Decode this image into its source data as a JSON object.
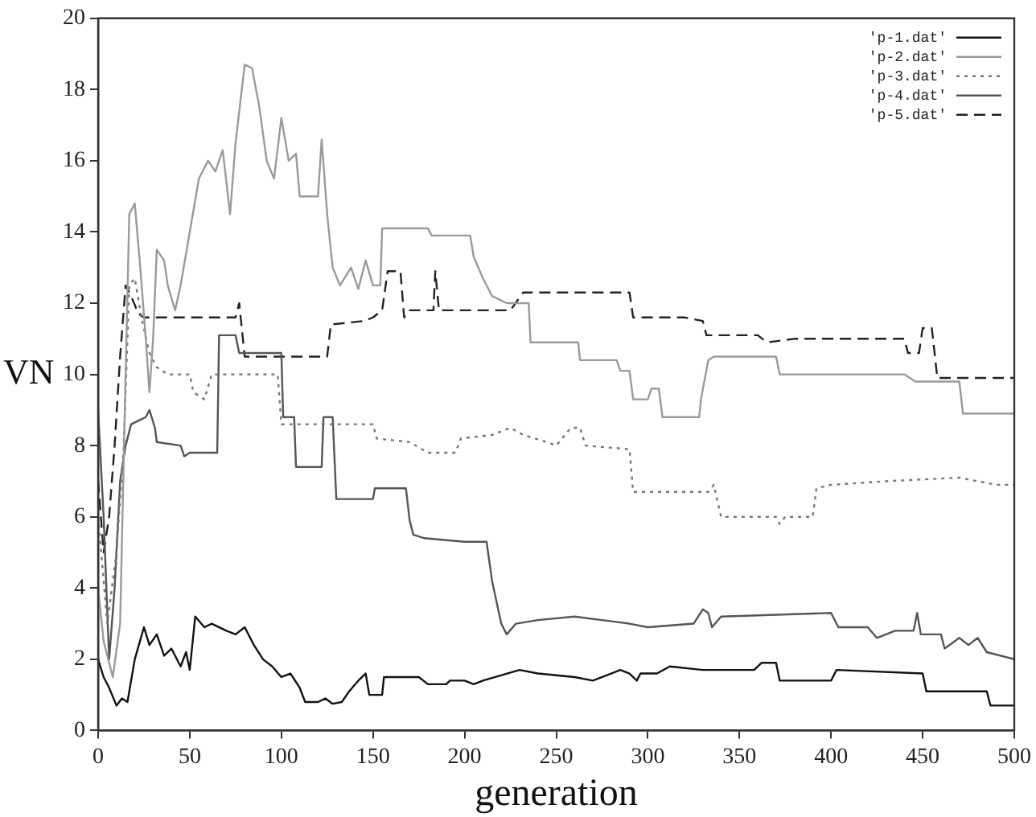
{
  "chart_data": {
    "type": "line",
    "xlabel": "generation",
    "ylabel": "VN",
    "xlim": [
      0,
      500
    ],
    "xticks": [
      0,
      50,
      100,
      150,
      200,
      250,
      300,
      350,
      400,
      450,
      500
    ],
    "ylim": [
      0,
      20
    ],
    "yticks": [
      0,
      2,
      4,
      6,
      8,
      10,
      12,
      14,
      16,
      18,
      20
    ],
    "grid": false,
    "legend": "top right",
    "marker": "none",
    "series": [
      {
        "name": "'p-1.dat'",
        "color": "#111111",
        "line_style": "solid",
        "x": [
          0,
          3,
          6,
          10,
          13,
          16,
          20,
          25,
          28,
          32,
          36,
          40,
          45,
          48,
          50,
          53,
          58,
          62,
          70,
          75,
          80,
          85,
          90,
          95,
          100,
          105,
          110,
          113,
          120,
          124,
          128,
          133,
          137,
          142,
          146,
          148,
          155,
          156,
          175,
          180,
          190,
          192,
          200,
          205,
          210,
          230,
          240,
          260,
          270,
          285,
          290,
          294,
          296,
          305,
          312,
          330,
          358,
          362,
          370,
          372,
          400,
          403,
          450,
          452,
          485,
          487,
          500
        ],
        "values": [
          2,
          1.5,
          1.2,
          0.7,
          0.9,
          0.8,
          2,
          2.9,
          2.4,
          2.7,
          2.1,
          2.3,
          1.8,
          2.2,
          1.7,
          3.2,
          2.9,
          3,
          2.8,
          2.7,
          2.9,
          2.4,
          2,
          1.8,
          1.5,
          1.6,
          1.2,
          0.8,
          0.8,
          0.9,
          0.75,
          0.8,
          1.1,
          1.4,
          1.6,
          1,
          1,
          1.5,
          1.5,
          1.3,
          1.3,
          1.4,
          1.4,
          1.3,
          1.4,
          1.7,
          1.6,
          1.5,
          1.4,
          1.7,
          1.6,
          1.4,
          1.6,
          1.6,
          1.8,
          1.7,
          1.7,
          1.9,
          1.9,
          1.4,
          1.4,
          1.7,
          1.6,
          1.1,
          1.1,
          0.7,
          0.7
        ]
      },
      {
        "name": "'p-2.dat'",
        "color": "#9a9a9a",
        "line_style": "solid",
        "x": [
          0,
          3,
          8,
          12,
          15,
          17,
          20,
          23,
          26,
          28,
          30,
          32,
          36,
          38,
          42,
          45,
          50,
          55,
          60,
          64,
          68,
          72,
          75,
          80,
          84,
          88,
          92,
          96,
          100,
          104,
          108,
          110,
          120,
          122,
          125,
          128,
          132,
          138,
          142,
          146,
          150,
          154,
          155,
          180,
          182,
          203,
          205,
          210,
          215,
          223,
          235,
          236,
          262,
          263,
          283,
          285,
          290,
          292,
          300,
          302,
          306,
          308,
          328,
          329,
          333,
          336,
          370,
          372,
          440,
          446,
          470,
          472,
          500
        ],
        "values": [
          4,
          2.5,
          1.5,
          3,
          10,
          14.5,
          14.8,
          13,
          11,
          9.5,
          11,
          13.5,
          13.2,
          12.5,
          11.8,
          12.5,
          14,
          15.5,
          16,
          15.7,
          16.3,
          14.5,
          16.5,
          18.7,
          18.6,
          17.5,
          16,
          15.5,
          17.2,
          16,
          16.2,
          15,
          15,
          16.6,
          14.5,
          13,
          12.5,
          13,
          12.4,
          13.2,
          12.5,
          12.5,
          14.1,
          14.1,
          13.9,
          13.9,
          13.3,
          12.7,
          12.2,
          12,
          12,
          10.9,
          10.9,
          10.4,
          10.4,
          10.1,
          10.1,
          9.3,
          9.3,
          9.6,
          9.6,
          8.8,
          8.8,
          9.3,
          10.4,
          10.5,
          10.5,
          10,
          10,
          9.8,
          9.8,
          8.9,
          8.9
        ]
      },
      {
        "name": "'p-3.dat'",
        "color": "#777777",
        "line_style": "dotted",
        "x": [
          0,
          5,
          10,
          14,
          17,
          20,
          24,
          28,
          32,
          38,
          50,
          52,
          58,
          62,
          98,
          100,
          150,
          152,
          170,
          180,
          195,
          198,
          215,
          225,
          232,
          245,
          250,
          258,
          263,
          266,
          290,
          292,
          333,
          336,
          340,
          370,
          372,
          375,
          390,
          392,
          400,
          430,
          470,
          490,
          500
        ],
        "values": [
          6,
          3,
          5,
          8,
          12.5,
          12.7,
          11.5,
          10.6,
          10.2,
          10,
          10,
          9.5,
          9.3,
          10,
          10,
          8.6,
          8.6,
          8.2,
          8.1,
          7.8,
          7.8,
          8.2,
          8.3,
          8.5,
          8.3,
          8.1,
          8,
          8.5,
          8.5,
          8,
          7.9,
          6.7,
          6.7,
          6.9,
          6,
          6,
          5.8,
          6,
          6,
          6.8,
          6.9,
          7,
          7.1,
          6.9,
          6.9
        ]
      },
      {
        "name": "'p-4.dat'",
        "color": "#555555",
        "line_style": "solid",
        "x": [
          0,
          3,
          6,
          9,
          12,
          15,
          18,
          22,
          26,
          28,
          31,
          32,
          45,
          47,
          50,
          65,
          66,
          75,
          77,
          100,
          101,
          107,
          108,
          122,
          123,
          128,
          130,
          150,
          151,
          168,
          170,
          172,
          178,
          200,
          212,
          215,
          220,
          223,
          228,
          240,
          260,
          290,
          300,
          325,
          330,
          333,
          335,
          340,
          400,
          404,
          420,
          425,
          435,
          445,
          447,
          449,
          460,
          462,
          470,
          475,
          480,
          485,
          500
        ],
        "values": [
          9,
          6,
          2,
          4,
          7,
          8,
          8.6,
          8.7,
          8.8,
          9,
          8.5,
          8.1,
          8,
          7.7,
          7.8,
          7.8,
          11.1,
          11.1,
          10.6,
          10.6,
          8.8,
          8.8,
          7.4,
          7.4,
          8.8,
          8.8,
          6.5,
          6.5,
          6.8,
          6.8,
          5.9,
          5.5,
          5.4,
          5.3,
          5.3,
          4.2,
          3,
          2.7,
          3,
          3.1,
          3.2,
          3,
          2.9,
          3,
          3.4,
          3.3,
          2.9,
          3.2,
          3.3,
          2.9,
          2.9,
          2.6,
          2.8,
          2.8,
          3.3,
          2.7,
          2.7,
          2.3,
          2.6,
          2.4,
          2.6,
          2.2,
          2
        ]
      },
      {
        "name": "'p-5.dat'",
        "color": "#222222",
        "line_style": "dashed",
        "x": [
          0,
          3,
          6,
          9,
          12,
          15,
          18,
          22,
          25,
          75,
          77,
          80,
          125,
          127,
          145,
          150,
          155,
          158,
          165,
          167,
          170,
          183,
          184,
          186,
          225,
          232,
          290,
          292,
          320,
          330,
          332,
          360,
          365,
          380,
          440,
          442,
          448,
          450,
          455,
          458,
          500
        ],
        "values": [
          7,
          5,
          6,
          8,
          10.5,
          12.5,
          12.2,
          11.7,
          11.6,
          11.6,
          12,
          10.5,
          10.5,
          11.4,
          11.5,
          11.6,
          11.8,
          12.9,
          12.9,
          11.6,
          11.8,
          11.8,
          12.9,
          11.8,
          11.8,
          12.3,
          12.3,
          11.6,
          11.6,
          11.5,
          11.1,
          11.1,
          10.9,
          11,
          11,
          10.6,
          10.6,
          11.3,
          11.3,
          9.9,
          9.9
        ]
      }
    ]
  }
}
